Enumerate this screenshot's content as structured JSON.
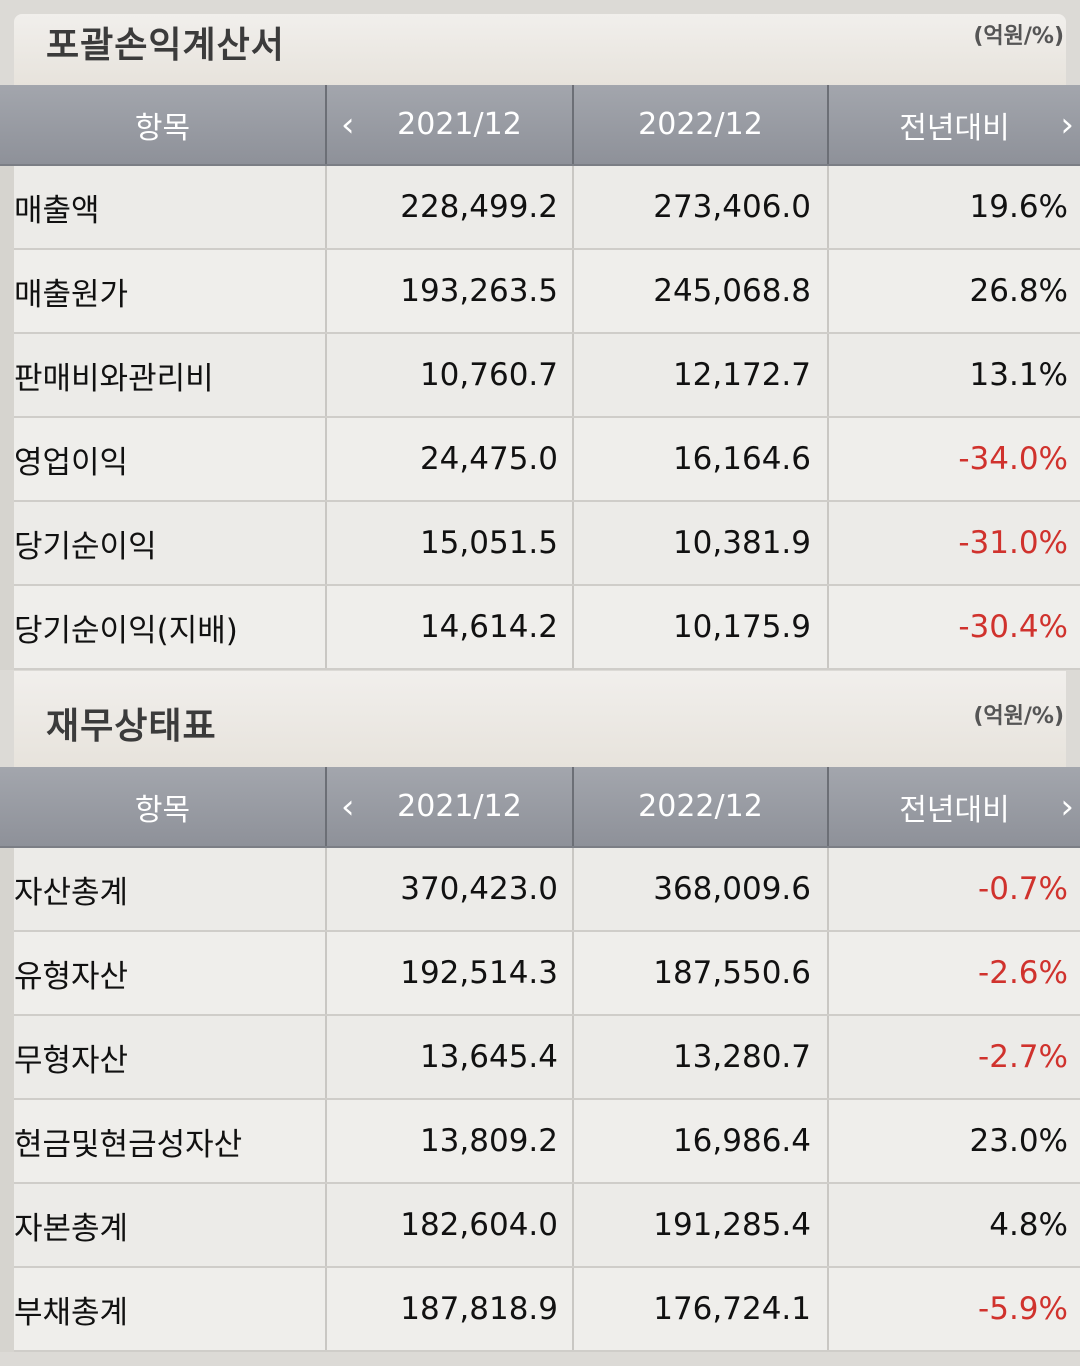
{
  "income": {
    "title": "포괄손익계산서",
    "unit": "(억원/%)",
    "headers": [
      "항목",
      "2021/12",
      "2022/12",
      "전년대비"
    ],
    "rows": [
      {
        "label": "매출액",
        "y2021": "228,499.2",
        "y2022": "273,406.0",
        "yoy": "19.6%",
        "negative": false
      },
      {
        "label": "매출원가",
        "y2021": "193,263.5",
        "y2022": "245,068.8",
        "yoy": "26.8%",
        "negative": false
      },
      {
        "label": "판매비와관리비",
        "y2021": "10,760.7",
        "y2022": "12,172.7",
        "yoy": "13.1%",
        "negative": false
      },
      {
        "label": "영업이익",
        "y2021": "24,475.0",
        "y2022": "16,164.6",
        "yoy": "-34.0%",
        "negative": true
      },
      {
        "label": "당기순이익",
        "y2021": "15,051.5",
        "y2022": "10,381.9",
        "yoy": "-31.0%",
        "negative": true
      },
      {
        "label": "당기순이익(지배)",
        "y2021": "14,614.2",
        "y2022": "10,175.9",
        "yoy": "-30.4%",
        "negative": true
      }
    ]
  },
  "balance": {
    "title": "재무상태표",
    "unit": "(억원/%)",
    "headers": [
      "항목",
      "2021/12",
      "2022/12",
      "전년대비"
    ],
    "rows": [
      {
        "label": "자산총계",
        "y2021": "370,423.0",
        "y2022": "368,009.6",
        "yoy": "-0.7%",
        "negative": true
      },
      {
        "label": "유형자산",
        "y2021": "192,514.3",
        "y2022": "187,550.6",
        "yoy": "-2.6%",
        "negative": true
      },
      {
        "label": "무형자산",
        "y2021": "13,645.4",
        "y2022": "13,280.7",
        "yoy": "-2.7%",
        "negative": true
      },
      {
        "label": "현금및현금성자산",
        "y2021": "13,809.2",
        "y2022": "16,986.4",
        "yoy": "23.0%",
        "negative": false
      },
      {
        "label": "자본총계",
        "y2021": "182,604.0",
        "y2022": "191,285.4",
        "yoy": "4.8%",
        "negative": false
      },
      {
        "label": "부채총계",
        "y2021": "187,818.9",
        "y2022": "176,724.1",
        "yoy": "-5.9%",
        "negative": true
      }
    ]
  },
  "icons": {
    "prev": "chevron-left-icon",
    "next": "chevron-right-icon"
  },
  "colors": {
    "negative": "#d0322d",
    "header_bg": "#9a9da4",
    "row_bg": "#ecebe8"
  }
}
